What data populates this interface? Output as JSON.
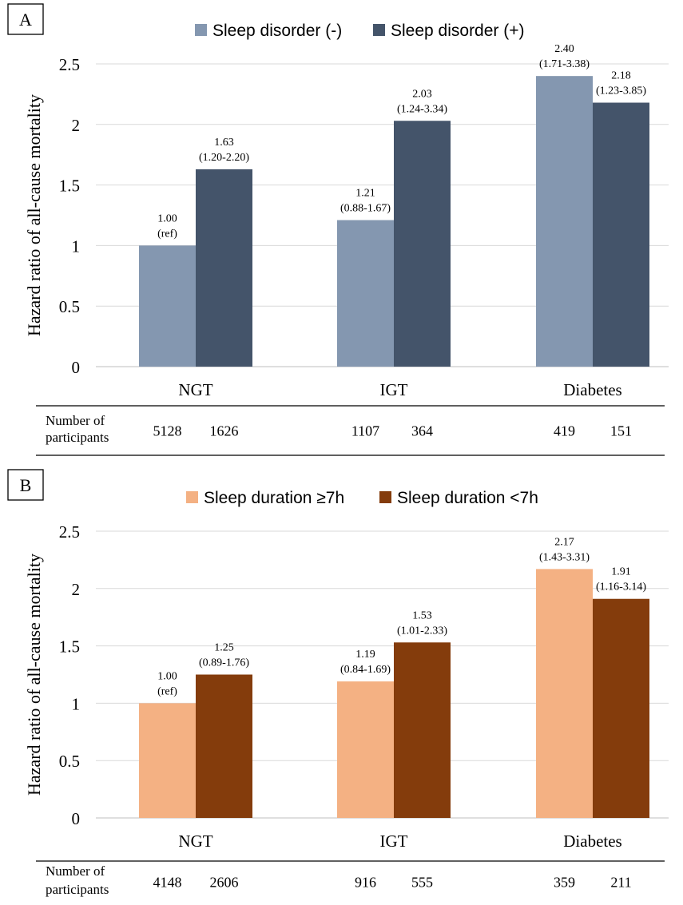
{
  "chart_data": [
    {
      "type": "bar",
      "panel_label": "A",
      "categories": [
        "NGT",
        "IGT",
        "Diabetes"
      ],
      "ylabel": "Hazard ratio of all-cause mortality",
      "ylim": [
        0,
        2.5
      ],
      "yticks": [
        {
          "value": 0,
          "label": "0"
        },
        {
          "value": 0.5,
          "label": "0.5"
        },
        {
          "value": 1,
          "label": "1"
        },
        {
          "value": 1.5,
          "label": "1.5"
        },
        {
          "value": 2,
          "label": "2"
        },
        {
          "value": 2.5,
          "label": "2.5"
        }
      ],
      "grid": true,
      "legend_position": "top",
      "series": [
        {
          "name": "Sleep disorder (-)",
          "color": "#8497b0",
          "values": [
            1.0,
            1.21,
            2.4
          ],
          "labels": [
            [
              "1.00",
              "(ref)"
            ],
            [
              "1.21",
              "(0.88-1.67)"
            ],
            [
              "2.40",
              "(1.71-3.38)"
            ]
          ]
        },
        {
          "name": "Sleep disorder (+)",
          "color": "#44546a",
          "values": [
            1.63,
            2.03,
            2.18
          ],
          "labels": [
            [
              "1.63",
              "(1.20-2.20)"
            ],
            [
              "2.03",
              "(1.24-3.34)"
            ],
            [
              "2.18",
              "(1.23-3.85)"
            ]
          ]
        }
      ],
      "participants": {
        "label": [
          "Number of",
          "participants"
        ],
        "counts": [
          [
            "5128",
            "1626"
          ],
          [
            "1107",
            "364"
          ],
          [
            "419",
            "151"
          ]
        ]
      }
    },
    {
      "type": "bar",
      "panel_label": "B",
      "categories": [
        "NGT",
        "IGT",
        "Diabetes"
      ],
      "ylabel": "Hazard ratio of all-cause mortality",
      "ylim": [
        0,
        2.5
      ],
      "yticks": [
        {
          "value": 0,
          "label": "0"
        },
        {
          "value": 0.5,
          "label": "0.5"
        },
        {
          "value": 1,
          "label": "1"
        },
        {
          "value": 1.5,
          "label": "1.5"
        },
        {
          "value": 2,
          "label": "2"
        },
        {
          "value": 2.5,
          "label": "2.5"
        }
      ],
      "grid": true,
      "legend_position": "top",
      "series": [
        {
          "name": "Sleep duration ≥7h",
          "color": "#f4b183",
          "values": [
            1.0,
            1.19,
            2.17
          ],
          "labels": [
            [
              "1.00",
              "(ref)"
            ],
            [
              "1.19",
              "(0.84-1.69)"
            ],
            [
              "2.17",
              "(1.43-3.31)"
            ]
          ]
        },
        {
          "name": "Sleep duration <7h",
          "color": "#843c0c",
          "values": [
            1.25,
            1.53,
            1.91
          ],
          "labels": [
            [
              "1.25",
              "(0.89-1.76)"
            ],
            [
              "1.53",
              "(1.01-2.33)"
            ],
            [
              "1.91",
              "(1.16-3.14)"
            ]
          ]
        }
      ],
      "participants": {
        "label": [
          "Number of",
          "participants"
        ],
        "counts": [
          [
            "4148",
            "2606"
          ],
          [
            "916",
            "555"
          ],
          [
            "359",
            "211"
          ]
        ]
      }
    }
  ]
}
